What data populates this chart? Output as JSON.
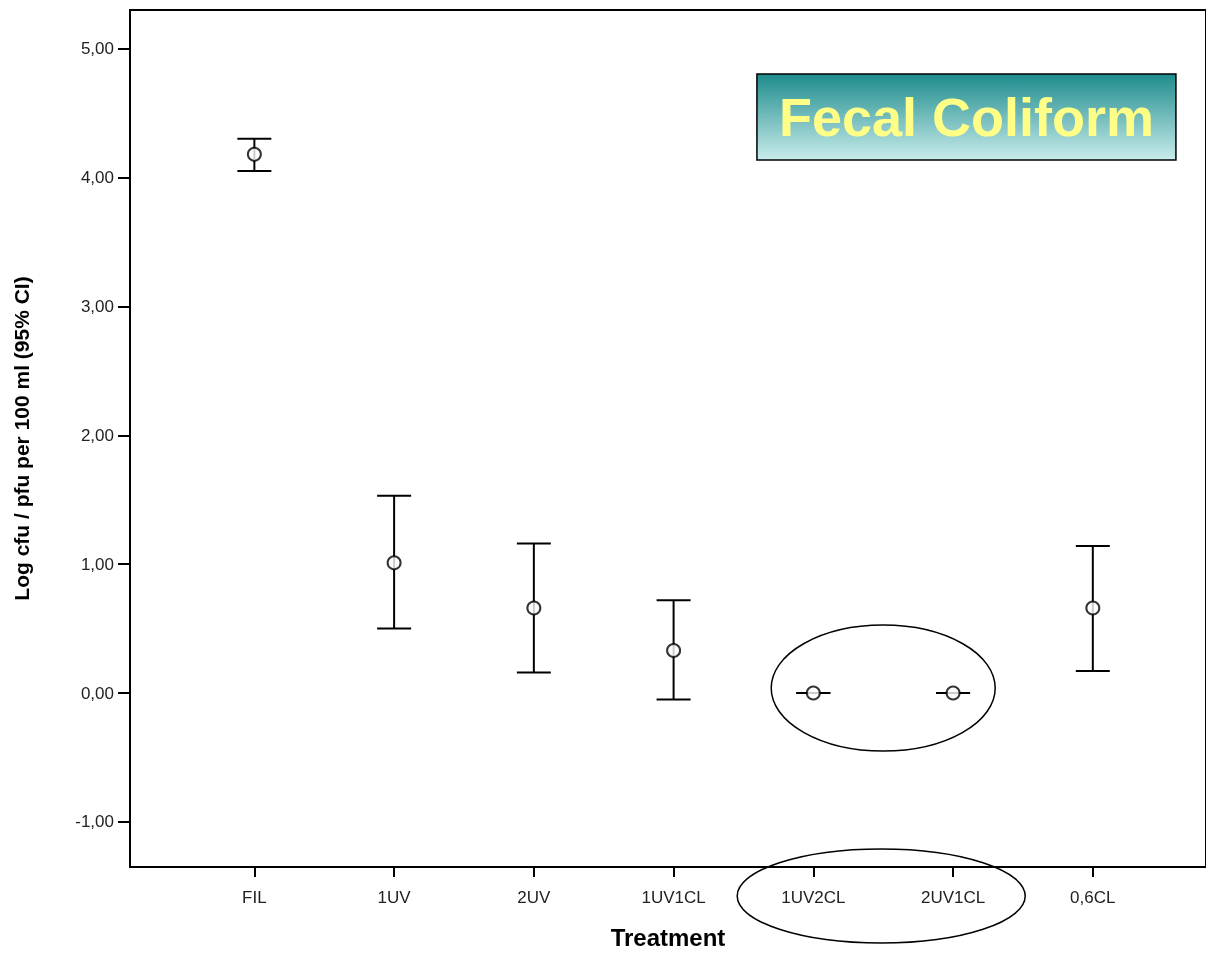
{
  "chart_data": {
    "type": "scatter",
    "title": "Fecal Coliform",
    "xlabel": "Treatment",
    "ylabel": "Log cfu / pfu per 100 ml (95% CI)",
    "categories": [
      "FIL",
      "1UV",
      "2UV",
      "1UV1CL",
      "1UV2CL",
      "2UV1CL",
      "0,6CL"
    ],
    "series": [
      {
        "color": "#000000",
        "values": [
          4.18,
          1.01,
          0.66,
          0.33,
          0,
          0,
          0.66
        ],
        "errors": [
          [
            4.05,
            4.3
          ],
          [
            0.5,
            1.53
          ],
          [
            0.16,
            1.16
          ],
          [
            -0.05,
            0.72
          ],
          [
            0,
            0
          ],
          [
            0,
            0
          ],
          [
            0.17,
            1.14
          ]
        ]
      }
    ],
    "ylim": [
      -1.35,
      5.3
    ],
    "yticks": [
      {
        "value": -1,
        "label": "-1,00"
      },
      {
        "value": 0,
        "label": "0,00"
      },
      {
        "value": 1,
        "label": "1,00"
      },
      {
        "value": 2,
        "label": "2,00"
      },
      {
        "value": 3,
        "label": "3,00"
      },
      {
        "value": 4,
        "label": "4,00"
      },
      {
        "value": 5,
        "label": "5,00"
      }
    ],
    "grid": false,
    "marker": "circle"
  }
}
